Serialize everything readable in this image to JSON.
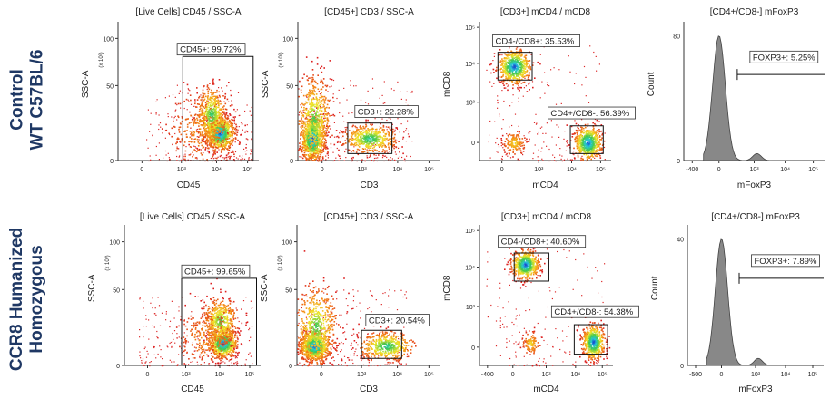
{
  "row_labels": [
    {
      "line1": "Control",
      "line2": "WT C57BL/6"
    },
    {
      "line1": "CCR8 Humanized",
      "line2": "Homozygous"
    }
  ],
  "axis_common": {
    "log_ticks": [
      "0",
      "10³",
      "10⁴",
      "10⁵"
    ],
    "ssc_ticks": [
      "0",
      "50",
      "100"
    ],
    "ssc_multiplier": "(x 10³)"
  },
  "chart_data": [
    {
      "type": "scatter",
      "row": 0,
      "title": "[Live Cells] CD45 / SSC-A",
      "xlabel": "CD45",
      "ylabel": "SSC-A",
      "x_ticks": [
        "0",
        "10³",
        "10⁴",
        "10⁵"
      ],
      "y_ticks": [
        "0",
        "50",
        "100"
      ],
      "y_multiplier": "(x 10³)",
      "gate_label": "CD45+: 99.72%",
      "gate_percent": 99.72
    },
    {
      "type": "scatter",
      "row": 0,
      "title": "[CD45+] CD3 / SSC-A",
      "xlabel": "CD3",
      "ylabel": "SSC-A",
      "x_ticks": [
        "0",
        "10³",
        "10⁴",
        "10⁵"
      ],
      "y_ticks": [
        "0",
        "50",
        "100"
      ],
      "y_multiplier": "(x 10³)",
      "gate_label": "CD3+: 22.28%",
      "gate_percent": 22.28
    },
    {
      "type": "scatter",
      "row": 0,
      "title": "[CD3+] mCD4 / mCD8",
      "xlabel": "mCD4",
      "ylabel": "mCD8",
      "x_ticks": [
        "0",
        "10³",
        "10⁴",
        "10⁵"
      ],
      "y_ticks": [
        "0",
        "10³",
        "10⁴",
        "10⁵"
      ],
      "gates": [
        {
          "label": "CD4-/CD8+: 35.53%",
          "percent": 35.53
        },
        {
          "label": "CD4+/CD8-: 56.39%",
          "percent": 56.39
        }
      ]
    },
    {
      "type": "histogram",
      "row": 0,
      "title": "[CD4+/CD8-] mFoxP3",
      "xlabel": "mFoxP3",
      "ylabel": "Count",
      "x_ticks": [
        "-400",
        "0",
        "10³",
        "10⁴",
        "10⁵"
      ],
      "y_ticks": [
        "0",
        "80"
      ],
      "gate_label": "FOXP3+: 5.25%",
      "gate_percent": 5.25
    },
    {
      "type": "scatter",
      "row": 1,
      "title": "[Live Cells] CD45 / SSC-A",
      "xlabel": "CD45",
      "ylabel": "SSC-A",
      "x_ticks": [
        "0",
        "10³",
        "10⁴",
        "10⁵"
      ],
      "y_ticks": [
        "0",
        "50",
        "100"
      ],
      "y_multiplier": "(x 10³)",
      "gate_label": "CD45+: 99.65%",
      "gate_percent": 99.65
    },
    {
      "type": "scatter",
      "row": 1,
      "title": "[CD45+] CD3 / SSC-A",
      "xlabel": "CD3",
      "ylabel": "SSC-A",
      "x_ticks": [
        "0",
        "10³",
        "10⁴",
        "10⁵"
      ],
      "y_ticks": [
        "0",
        "50",
        "100"
      ],
      "y_multiplier": "(x 10³)",
      "gate_label": "CD3+: 20.54%",
      "gate_percent": 20.54
    },
    {
      "type": "scatter",
      "row": 1,
      "title": "[CD3+] mCD4 / mCD8",
      "xlabel": "mCD4",
      "ylabel": "mCD8",
      "x_ticks": [
        "-400",
        "0",
        "10³",
        "10⁴",
        "10⁵"
      ],
      "y_ticks": [
        "0",
        "10³",
        "10⁴",
        "10⁵"
      ],
      "gates": [
        {
          "label": "CD4-/CD8+: 40.60%",
          "percent": 40.6
        },
        {
          "label": "CD4+/CD8-: 54.38%",
          "percent": 54.38
        }
      ]
    },
    {
      "type": "histogram",
      "row": 1,
      "title": "[CD4+/CD8-] mFoxP3",
      "xlabel": "mFoxP3",
      "ylabel": "Count",
      "x_ticks": [
        "-500",
        "0",
        "10³",
        "10⁴",
        "10⁵"
      ],
      "y_ticks": [
        "0",
        "40"
      ],
      "gate_label": "FOXP3+: 7.89%",
      "gate_percent": 7.89
    }
  ]
}
